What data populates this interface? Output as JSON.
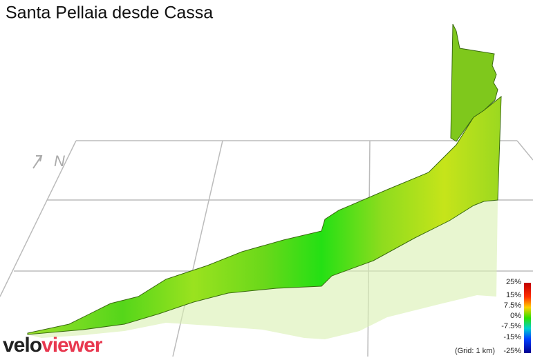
{
  "title": "Santa Pellaia desde Cassa",
  "compass": "N",
  "legend": {
    "labels": [
      "25%",
      "15%",
      "7.5%",
      "0%",
      "-7.5%",
      "-15%",
      "-25%"
    ],
    "grid_note": "(Grid: 1 km)"
  },
  "logo": {
    "part1": "velo",
    "part2": "viewer"
  }
}
